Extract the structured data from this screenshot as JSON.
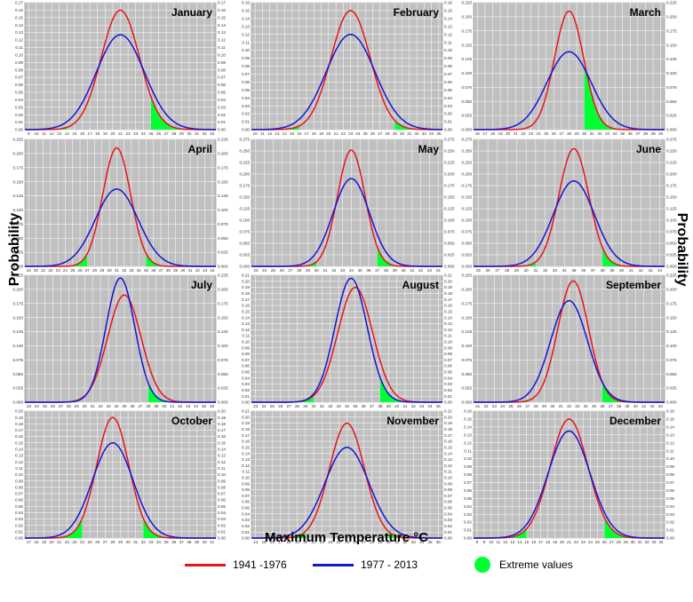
{
  "figure": {
    "y_label": "Probability",
    "x_label": "Maximum Temperature °C",
    "colors": {
      "period1": "#e8141b",
      "period2": "#1515d4",
      "extreme": "#00ff33",
      "panel_bg": "#c0c0c0"
    }
  },
  "legend": {
    "period1": "1941 -1976",
    "period2": "1977 - 2013",
    "extreme": "Extreme values"
  },
  "chart_data": [
    {
      "type": "line",
      "title": "January",
      "x_ticks": [
        9,
        10,
        11,
        12,
        13,
        14,
        15,
        16,
        17,
        18,
        19,
        20,
        21,
        22,
        23,
        24,
        25,
        26,
        27,
        28,
        29,
        30,
        31,
        32,
        33
      ],
      "xlim": [
        8.5,
        33.5
      ],
      "ylim": [
        0,
        0.17
      ],
      "y_ticks_left": [
        0.0,
        0.01,
        0.02,
        0.03,
        0.04,
        0.05,
        0.06,
        0.07,
        0.08,
        0.09,
        0.1,
        0.11,
        0.12,
        0.13,
        0.14,
        0.15,
        0.16,
        0.17
      ],
      "y_ticks_right": [
        0.0,
        0.01,
        0.02,
        0.03,
        0.04,
        0.05,
        0.06,
        0.07,
        0.08,
        0.09,
        0.1,
        0.11,
        0.12,
        0.13,
        0.14,
        0.15,
        0.16,
        0.17
      ],
      "y_format": 2,
      "series": [
        {
          "name": "1941 -1976",
          "mean": 21,
          "peak": 0.16
        },
        {
          "name": "1977 - 2013",
          "mean": 21,
          "peak": 0.127
        }
      ],
      "extreme_ranges": [
        [
          8.5,
          14
        ],
        [
          25,
          33.5
        ]
      ]
    },
    {
      "type": "line",
      "title": "February",
      "x_ticks": [
        10,
        11,
        12,
        13,
        14,
        15,
        16,
        17,
        18,
        19,
        20,
        21,
        22,
        23,
        24,
        25,
        26,
        27,
        28,
        29,
        30,
        31,
        32,
        33,
        34,
        35
      ],
      "xlim": [
        9.5,
        35.5
      ],
      "ylim": [
        0,
        0.16
      ],
      "y_ticks_left": [
        0.0,
        0.01,
        0.02,
        0.03,
        0.04,
        0.05,
        0.06,
        0.07,
        0.08,
        0.09,
        0.1,
        0.11,
        0.12,
        0.13,
        0.14,
        0.15,
        0.16
      ],
      "y_ticks_right": [
        0.0,
        0.01,
        0.02,
        0.03,
        0.04,
        0.05,
        0.06,
        0.07,
        0.08,
        0.09,
        0.1,
        0.11,
        0.12,
        0.13,
        0.14,
        0.15,
        0.16
      ],
      "y_format": 2,
      "series": [
        {
          "name": "1941 -1976",
          "mean": 23,
          "peak": 0.15
        },
        {
          "name": "1977 - 2013",
          "mean": 23,
          "peak": 0.12
        }
      ],
      "extreme_ranges": [
        [
          9.5,
          16
        ],
        [
          29,
          35.5
        ]
      ]
    },
    {
      "type": "line",
      "title": "March",
      "x_ticks": [
        16,
        17,
        18,
        19,
        20,
        21,
        22,
        23,
        24,
        25,
        26,
        27,
        28,
        29,
        30,
        31,
        32,
        33,
        34,
        35,
        36,
        37,
        38,
        39,
        40
      ],
      "xlim": [
        15.5,
        40.5
      ],
      "ylim": [
        0,
        0.225
      ],
      "y_ticks_left": [
        0.0,
        0.025,
        0.05,
        0.075,
        0.1,
        0.125,
        0.15,
        0.175,
        0.2,
        0.225
      ],
      "y_ticks_right": [
        0.0,
        0.025,
        0.05,
        0.075,
        0.1,
        0.125,
        0.15,
        0.175,
        0.2,
        0.225
      ],
      "y_format": 3,
      "series": [
        {
          "name": "1941 -1976",
          "mean": 28,
          "peak": 0.21
        },
        {
          "name": "1977 - 2013",
          "mean": 28,
          "peak": 0.138
        }
      ],
      "extreme_ranges": [
        [
          15.5,
          22
        ],
        [
          30,
          40.5
        ]
      ]
    },
    {
      "type": "line",
      "title": "April",
      "x_ticks": [
        19,
        20,
        21,
        22,
        23,
        24,
        25,
        26,
        27,
        28,
        29,
        30,
        31,
        32,
        33,
        34,
        35,
        36,
        37,
        38,
        39,
        40,
        41,
        42,
        43,
        44
      ],
      "xlim": [
        18.5,
        44.5
      ],
      "ylim": [
        0,
        0.225
      ],
      "y_ticks_left": [
        0.0,
        0.025,
        0.05,
        0.075,
        0.1,
        0.125,
        0.15,
        0.175,
        0.2,
        0.225
      ],
      "y_ticks_right": [
        0.0,
        0.025,
        0.05,
        0.075,
        0.1,
        0.125,
        0.15,
        0.175,
        0.2,
        0.225
      ],
      "y_format": 3,
      "series": [
        {
          "name": "1941 -1976",
          "mean": 31,
          "peak": 0.21
        },
        {
          "name": "1977 - 2013",
          "mean": 31,
          "peak": 0.137
        }
      ],
      "extreme_ranges": [
        [
          18.5,
          27
        ],
        [
          35,
          44.5
        ]
      ]
    },
    {
      "type": "line",
      "title": "May",
      "x_ticks": [
        23,
        24,
        25,
        26,
        27,
        28,
        29,
        30,
        31,
        32,
        33,
        34,
        35,
        36,
        37,
        38,
        39,
        40,
        41,
        42,
        43,
        44
      ],
      "xlim": [
        22.5,
        44.5
      ],
      "ylim": [
        0,
        0.275
      ],
      "y_ticks_left": [
        0.0,
        0.025,
        0.05,
        0.075,
        0.1,
        0.125,
        0.15,
        0.175,
        0.2,
        0.225,
        0.25,
        0.275
      ],
      "y_ticks_right": [
        0.0,
        0.025,
        0.05,
        0.075,
        0.1,
        0.125,
        0.15,
        0.175,
        0.2,
        0.225,
        0.25,
        0.275
      ],
      "y_format": 3,
      "series": [
        {
          "name": "1941 -1976",
          "mean": 34,
          "peak": 0.252
        },
        {
          "name": "1977 - 2013",
          "mean": 34,
          "peak": 0.19
        }
      ],
      "extreme_ranges": [
        [
          22.5,
          30
        ],
        [
          37,
          44.5
        ]
      ]
    },
    {
      "type": "line",
      "title": "June",
      "x_ticks": [
        25,
        26,
        27,
        28,
        29,
        30,
        31,
        32,
        33,
        34,
        35,
        36,
        37,
        38,
        39,
        40,
        41,
        42,
        43,
        44
      ],
      "xlim": [
        24.5,
        44.5
      ],
      "ylim": [
        0,
        0.275
      ],
      "y_ticks_left": [
        0.0,
        0.025,
        0.05,
        0.075,
        0.1,
        0.125,
        0.15,
        0.175,
        0.2,
        0.225,
        0.25,
        0.275
      ],
      "y_ticks_right": [
        0.0,
        0.025,
        0.05,
        0.075,
        0.1,
        0.125,
        0.15,
        0.175,
        0.2,
        0.225,
        0.25,
        0.275
      ],
      "y_format": 3,
      "series": [
        {
          "name": "1941 -1976",
          "mean": 35,
          "peak": 0.255
        },
        {
          "name": "1977 - 2013",
          "mean": 35,
          "peak": 0.185
        }
      ],
      "extreme_ranges": [
        [
          24.5,
          31
        ],
        [
          38,
          44.5
        ]
      ]
    },
    {
      "type": "line",
      "title": "July",
      "x_ticks": [
        23,
        24,
        25,
        26,
        27,
        28,
        29,
        30,
        31,
        32,
        33,
        34,
        35,
        36,
        37,
        38,
        39,
        40,
        41,
        42,
        43,
        44,
        45,
        46
      ],
      "xlim": [
        22.5,
        46.5
      ],
      "ylim": [
        0,
        0.225
      ],
      "y_ticks_left": [
        0.0,
        0.025,
        0.05,
        0.075,
        0.1,
        0.125,
        0.15,
        0.175,
        0.2,
        0.225
      ],
      "y_ticks_right": [
        0.0,
        0.025,
        0.05,
        0.075,
        0.1,
        0.125,
        0.15,
        0.175,
        0.2,
        0.225
      ],
      "y_format": 3,
      "series": [
        {
          "name": "1941 -1976",
          "mean": 35,
          "peak": 0.19
        },
        {
          "name": "1977 - 2013",
          "mean": 34.5,
          "peak": 0.22
        }
      ],
      "extreme_ranges": [
        [
          22.5,
          27
        ],
        [
          38,
          46.5
        ]
      ]
    },
    {
      "type": "line",
      "title": "August",
      "x_ticks": [
        23,
        24,
        25,
        26,
        27,
        28,
        29,
        30,
        31,
        32,
        33,
        34,
        35,
        36,
        37,
        38,
        39,
        40,
        41,
        42,
        43,
        44,
        45
      ],
      "xlim": [
        22.5,
        45.5
      ],
      "ylim": [
        0,
        0.21
      ],
      "y_ticks_left": [
        0.0,
        0.01,
        0.02,
        0.03,
        0.04,
        0.05,
        0.06,
        0.07,
        0.08,
        0.09,
        0.1,
        0.11,
        0.12,
        0.13,
        0.14,
        0.15,
        0.16,
        0.17,
        0.18,
        0.19,
        0.2,
        0.21
      ],
      "y_ticks_right": [
        0.0,
        0.01,
        0.02,
        0.03,
        0.04,
        0.05,
        0.06,
        0.07,
        0.08,
        0.09,
        0.1,
        0.11,
        0.12,
        0.13,
        0.14,
        0.15,
        0.16,
        0.17,
        0.18,
        0.19,
        0.2,
        0.21
      ],
      "y_format": 2,
      "series": [
        {
          "name": "1941 -1976",
          "mean": 35,
          "peak": 0.19
        },
        {
          "name": "1977 - 2013",
          "mean": 34.5,
          "peak": 0.205
        }
      ],
      "extreme_ranges": [
        [
          22.5,
          30
        ],
        [
          38,
          45.5
        ]
      ]
    },
    {
      "type": "line",
      "title": "September",
      "x_ticks": [
        21,
        22,
        23,
        24,
        25,
        26,
        27,
        28,
        29,
        30,
        31,
        32,
        33,
        34,
        35,
        36,
        37,
        38,
        39,
        40,
        41,
        42,
        43
      ],
      "xlim": [
        20.5,
        43.5
      ],
      "ylim": [
        0,
        0.225
      ],
      "y_ticks_left": [
        0.0,
        0.025,
        0.05,
        0.075,
        0.1,
        0.125,
        0.15,
        0.175,
        0.2,
        0.225
      ],
      "y_ticks_right": [
        0.0,
        0.025,
        0.05,
        0.075,
        0.1,
        0.125,
        0.15,
        0.175,
        0.2,
        0.225
      ],
      "y_format": 3,
      "series": [
        {
          "name": "1941 -1976",
          "mean": 32.5,
          "peak": 0.215
        },
        {
          "name": "1977 - 2013",
          "mean": 32,
          "peak": 0.18
        }
      ],
      "extreme_ranges": [
        [
          20.5,
          27
        ],
        [
          36,
          43.5
        ]
      ]
    },
    {
      "type": "line",
      "title": "October",
      "x_ticks": [
        17,
        18,
        19,
        20,
        21,
        22,
        23,
        24,
        25,
        26,
        27,
        28,
        29,
        30,
        31,
        32,
        33,
        34,
        35,
        36,
        37,
        38,
        39,
        40,
        41
      ],
      "xlim": [
        16.5,
        41.5
      ],
      "ylim": [
        0,
        0.2
      ],
      "y_ticks_left": [
        0.0,
        0.01,
        0.02,
        0.03,
        0.04,
        0.05,
        0.06,
        0.07,
        0.08,
        0.09,
        0.1,
        0.11,
        0.12,
        0.13,
        0.14,
        0.15,
        0.16,
        0.17,
        0.18,
        0.19,
        0.2
      ],
      "y_ticks_right": [
        0.0,
        0.01,
        0.02,
        0.03,
        0.04,
        0.05,
        0.06,
        0.07,
        0.08,
        0.09,
        0.1,
        0.11,
        0.12,
        0.13,
        0.14,
        0.15,
        0.16,
        0.17,
        0.18,
        0.19,
        0.2
      ],
      "y_format": 2,
      "series": [
        {
          "name": "1941 -1976",
          "mean": 28,
          "peak": 0.19
        },
        {
          "name": "1977 - 2013",
          "mean": 28,
          "peak": 0.15
        }
      ],
      "extreme_ranges": [
        [
          16.5,
          24
        ],
        [
          32,
          41.5
        ]
      ]
    },
    {
      "type": "line",
      "title": "November",
      "x_ticks": [
        14,
        15,
        16,
        17,
        18,
        19,
        20,
        21,
        22,
        23,
        24,
        25,
        26,
        27,
        28,
        29,
        30,
        31,
        32,
        33,
        34,
        35,
        36
      ],
      "xlim": [
        13.5,
        36.5
      ],
      "ylim": [
        0,
        0.21
      ],
      "y_ticks_left": [
        0.0,
        0.01,
        0.02,
        0.03,
        0.04,
        0.05,
        0.06,
        0.07,
        0.08,
        0.09,
        0.1,
        0.11,
        0.12,
        0.13,
        0.14,
        0.15,
        0.16,
        0.17,
        0.18,
        0.19,
        0.2,
        0.21
      ],
      "y_ticks_right": [
        0.0,
        0.01,
        0.02,
        0.03,
        0.04,
        0.05,
        0.06,
        0.07,
        0.08,
        0.09,
        0.1,
        0.11,
        0.12,
        0.13,
        0.14,
        0.15,
        0.16,
        0.17,
        0.18,
        0.19,
        0.2,
        0.21
      ],
      "y_format": 2,
      "series": [
        {
          "name": "1941 -1976",
          "mean": 25,
          "peak": 0.19
        },
        {
          "name": "1977 - 2013",
          "mean": 25,
          "peak": 0.15
        }
      ],
      "extreme_ranges": [
        [
          13.5,
          20
        ],
        [
          30,
          36.5
        ]
      ]
    },
    {
      "type": "line",
      "title": "December",
      "x_ticks": [
        8,
        9,
        10,
        11,
        12,
        13,
        14,
        15,
        16,
        17,
        18,
        19,
        20,
        21,
        22,
        23,
        24,
        25,
        26,
        27,
        28,
        29,
        30,
        31,
        32,
        33,
        34
      ],
      "xlim": [
        7.5,
        34.5
      ],
      "ylim": [
        0,
        0.16
      ],
      "y_ticks_left": [
        0.0,
        0.01,
        0.02,
        0.03,
        0.04,
        0.05,
        0.06,
        0.07,
        0.08,
        0.09,
        0.1,
        0.11,
        0.12,
        0.13,
        0.14,
        0.15,
        0.16
      ],
      "y_ticks_right": [
        0.0,
        0.01,
        0.02,
        0.03,
        0.04,
        0.05,
        0.06,
        0.07,
        0.08,
        0.09,
        0.1,
        0.11,
        0.12,
        0.13,
        0.14,
        0.15,
        0.16
      ],
      "y_format": 2,
      "series": [
        {
          "name": "1941 -1976",
          "mean": 21,
          "peak": 0.15
        },
        {
          "name": "1977 - 2013",
          "mean": 21,
          "peak": 0.135
        }
      ],
      "extreme_ranges": [
        [
          7.5,
          15
        ],
        [
          26,
          34.5
        ]
      ]
    }
  ]
}
